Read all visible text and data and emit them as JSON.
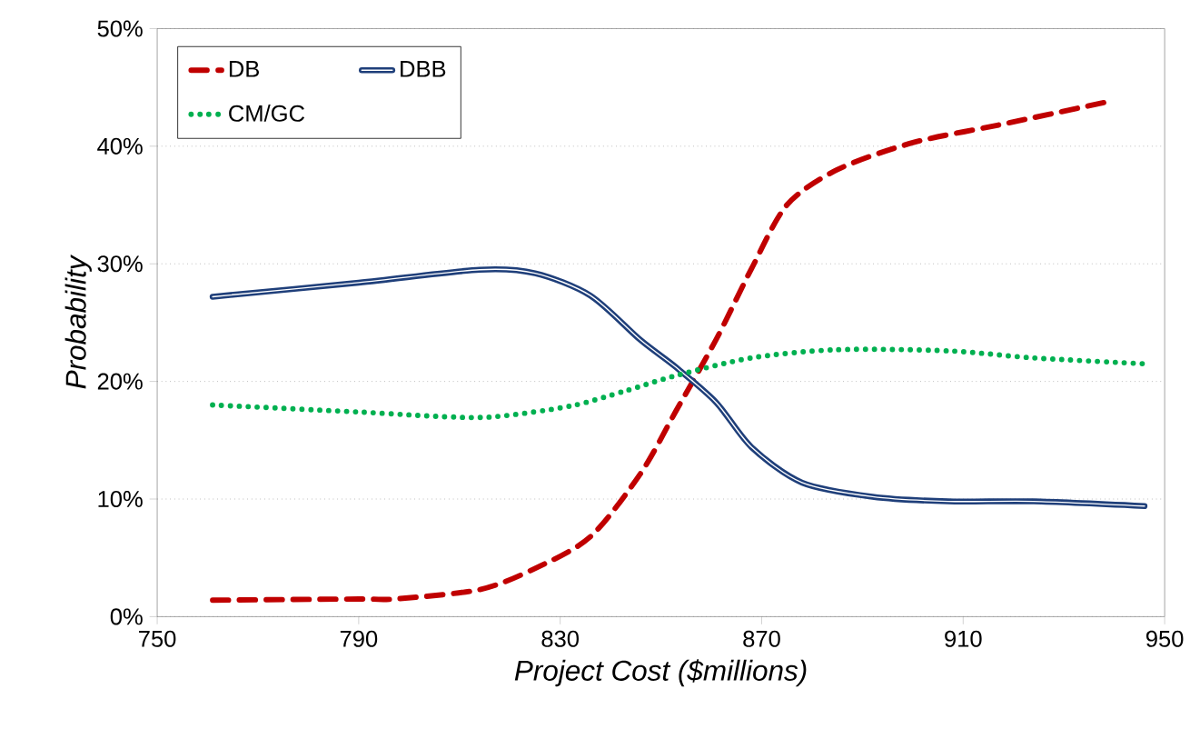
{
  "chart_data": {
    "type": "line",
    "xlabel": "Project Cost ($millions)",
    "ylabel": "Probability",
    "xlim": [
      750,
      950
    ],
    "xticks": [
      750,
      790,
      830,
      870,
      910,
      950
    ],
    "ylim": [
      0,
      50
    ],
    "yticks": [
      {
        "value": 0,
        "label": "0%"
      },
      {
        "value": 10,
        "label": "10%"
      },
      {
        "value": 20,
        "label": "20%"
      },
      {
        "value": 30,
        "label": "30%"
      },
      {
        "value": 40,
        "label": "40%"
      },
      {
        "value": 50,
        "label": "50%"
      }
    ],
    "grid": "y",
    "legend": "top left",
    "marker": "none",
    "series": [
      {
        "name": "DB",
        "color": "#c00000",
        "line_style": "dashed",
        "x": [
          761,
          790,
          797,
          814,
          825,
          836,
          846,
          853,
          861,
          868,
          875,
          885,
          900,
          917,
          939
        ],
        "values": [
          1.4,
          1.5,
          1.5,
          2.3,
          4.1,
          6.8,
          12.2,
          17.5,
          23.6,
          29.6,
          35,
          38,
          40.3,
          41.8,
          43.8
        ]
      },
      {
        "name": "DBB",
        "color": "#1f3f7a",
        "line_style": "solid",
        "x": [
          761,
          790,
          814,
          825,
          836,
          846,
          853,
          861,
          868,
          878,
          892,
          907,
          924,
          946
        ],
        "values": [
          27.2,
          28.4,
          29.5,
          29.2,
          27.3,
          23.5,
          21.2,
          18.2,
          14.4,
          11.4,
          10.2,
          9.8,
          9.8,
          9.4
        ]
      },
      {
        "name": "CM/GC",
        "color": "#00b050",
        "line_style": "dotted",
        "x": [
          761,
          790,
          807,
          817,
          832,
          843,
          853,
          868,
          885,
          907,
          924,
          946
        ],
        "values": [
          18,
          17.4,
          17,
          17,
          17.9,
          19.2,
          20.5,
          22,
          22.7,
          22.6,
          22,
          21.5
        ]
      }
    ]
  }
}
